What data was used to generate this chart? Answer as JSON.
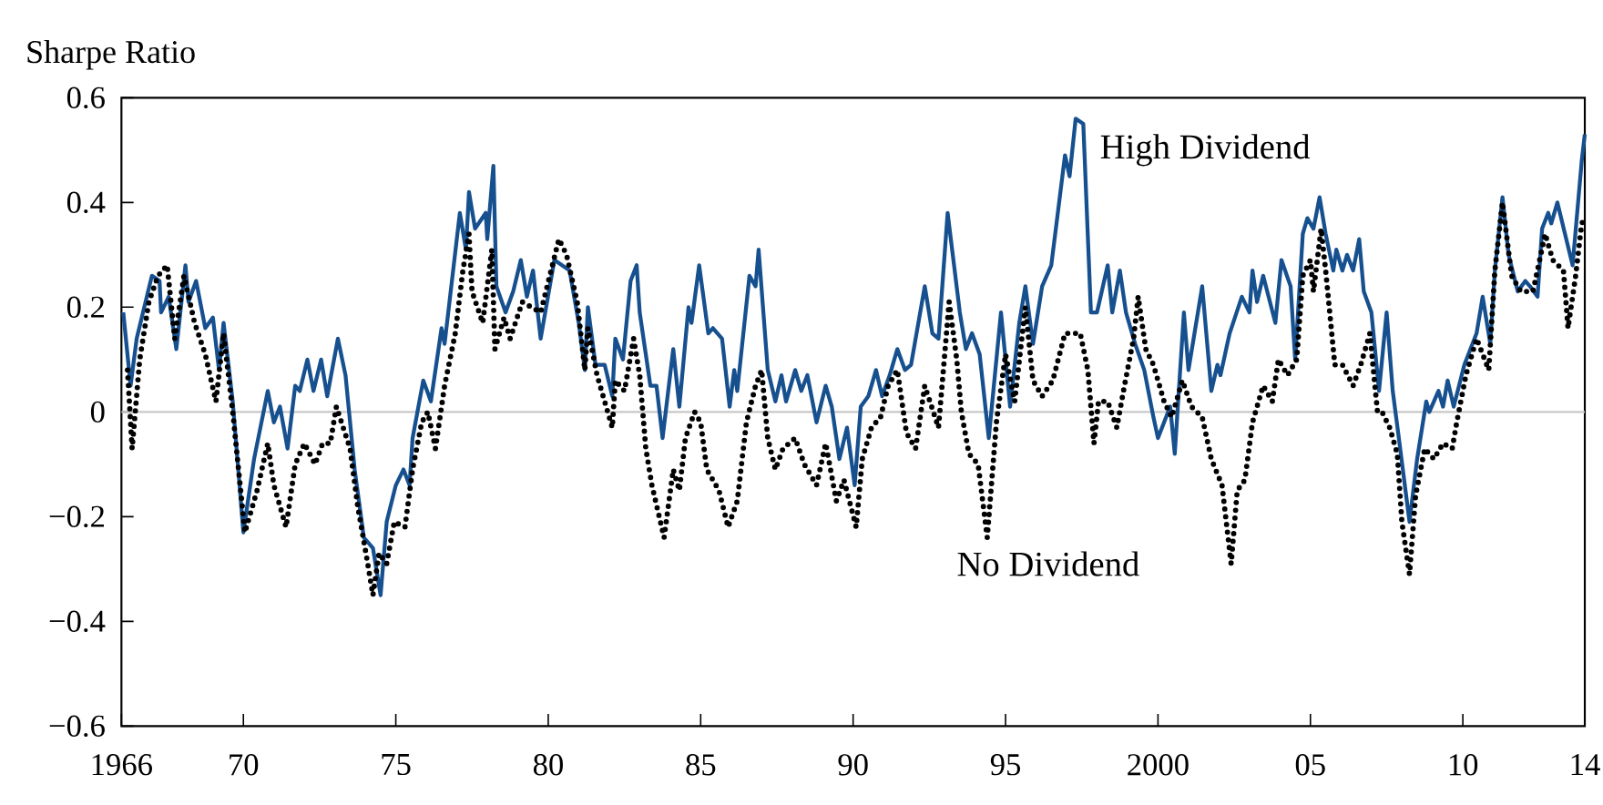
{
  "chart_data": {
    "type": "line",
    "ylabel": "Sharpe Ratio",
    "xlim": [
      1966,
      2014
    ],
    "ylim": [
      -0.6,
      0.6
    ],
    "xticks": [
      {
        "value": 1966,
        "label": "1966"
      },
      {
        "value": 1970,
        "label": "70"
      },
      {
        "value": 1975,
        "label": "75"
      },
      {
        "value": 1980,
        "label": "80"
      },
      {
        "value": 1985,
        "label": "85"
      },
      {
        "value": 1990,
        "label": "90"
      },
      {
        "value": 1995,
        "label": "95"
      },
      {
        "value": 2000,
        "label": "2000"
      },
      {
        "value": 2005,
        "label": "05"
      },
      {
        "value": 2010,
        "label": "10"
      },
      {
        "value": 2014,
        "label": "14"
      }
    ],
    "yticks": [
      {
        "value": -0.6,
        "label": "−0.6"
      },
      {
        "value": -0.4,
        "label": "−0.4"
      },
      {
        "value": -0.2,
        "label": "−0.2"
      },
      0,
      0.2,
      0.4,
      0.6
    ],
    "ref_lines": [
      {
        "axis": "y",
        "value": 0,
        "color": "#c8c8c8"
      }
    ],
    "series": [
      {
        "name": "High Dividend",
        "color": "#17508f",
        "line_style": "solid",
        "x": [
          1966.06,
          1966.3,
          1966.5,
          1967.0,
          1967.25,
          1967.3,
          1967.55,
          1967.8,
          1968.1,
          1968.2,
          1968.45,
          1968.75,
          1969.0,
          1969.2,
          1969.35,
          1969.65,
          1970.0,
          1970.35,
          1970.8,
          1971.0,
          1971.2,
          1971.45,
          1971.7,
          1971.85,
          1972.1,
          1972.3,
          1972.55,
          1972.75,
          1973.1,
          1973.35,
          1973.65,
          1973.95,
          1974.25,
          1974.5,
          1974.7,
          1975.0,
          1975.25,
          1975.45,
          1975.55,
          1975.9,
          1976.15,
          1976.5,
          1976.6,
          1977.1,
          1977.3,
          1977.4,
          1977.6,
          1977.95,
          1978.0,
          1978.2,
          1978.3,
          1978.6,
          1978.85,
          1979.1,
          1979.3,
          1979.5,
          1979.75,
          1980.2,
          1980.7,
          1981.0,
          1981.2,
          1981.3,
          1981.55,
          1981.85,
          1982.1,
          1982.2,
          1982.45,
          1982.7,
          1982.9,
          1983.0,
          1983.35,
          1983.55,
          1983.75,
          1984.1,
          1984.3,
          1984.6,
          1984.7,
          1984.95,
          1985.25,
          1985.4,
          1985.7,
          1985.95,
          1986.1,
          1986.2,
          1986.6,
          1986.8,
          1986.9,
          1987.2,
          1987.45,
          1987.65,
          1987.8,
          1988.1,
          1988.3,
          1988.5,
          1988.8,
          1989.1,
          1989.3,
          1989.55,
          1989.8,
          1990.05,
          1990.25,
          1990.5,
          1990.75,
          1990.95,
          1991.2,
          1991.45,
          1991.7,
          1991.9,
          1992.35,
          1992.6,
          1992.8,
          1993.1,
          1993.5,
          1993.7,
          1993.9,
          1994.15,
          1994.45,
          1994.85,
          1995.15,
          1995.45,
          1995.65,
          1995.9,
          1996.2,
          1996.5,
          1996.8,
          1996.95,
          1997.1,
          1997.3,
          1997.55,
          1997.8,
          1998.0,
          1998.35,
          1998.5,
          1998.75,
          1998.95,
          1999.25,
          1999.55,
          1999.85,
          2000.0,
          2000.4,
          2000.55,
          2000.85,
          2001.0,
          2001.45,
          2001.75,
          2001.95,
          2002.05,
          2002.35,
          2002.75,
          2003.0,
          2003.1,
          2003.25,
          2003.45,
          2003.85,
          2004.05,
          2004.35,
          2004.5,
          2004.75,
          2004.9,
          2005.1,
          2005.3,
          2005.5,
          2005.75,
          2005.85,
          2006.05,
          2006.2,
          2006.4,
          2006.6,
          2006.75,
          2007.0,
          2007.25,
          2007.5,
          2007.7,
          2007.9,
          2008.25,
          2008.5,
          2008.8,
          2008.9,
          2009.2,
          2009.35,
          2009.5,
          2009.7,
          2010.05,
          2010.45,
          2010.65,
          2010.9,
          2011.05,
          2011.3,
          2011.5,
          2011.8,
          2012.05,
          2012.2,
          2012.45,
          2012.6,
          2012.8,
          2012.9,
          2013.1,
          2013.6,
          2013.9,
          2014.0
        ],
        "values": [
          0.19,
          0.05,
          0.14,
          0.26,
          0.25,
          0.19,
          0.22,
          0.12,
          0.28,
          0.21,
          0.25,
          0.16,
          0.18,
          0.08,
          0.17,
          0.02,
          -0.23,
          -0.09,
          0.04,
          -0.02,
          0.01,
          -0.07,
          0.05,
          0.04,
          0.1,
          0.04,
          0.1,
          0.03,
          0.14,
          0.07,
          -0.11,
          -0.24,
          -0.26,
          -0.35,
          -0.21,
          -0.14,
          -0.11,
          -0.14,
          -0.05,
          0.06,
          0.02,
          0.16,
          0.13,
          0.38,
          0.31,
          0.42,
          0.35,
          0.38,
          0.33,
          0.47,
          0.24,
          0.19,
          0.23,
          0.29,
          0.22,
          0.27,
          0.14,
          0.29,
          0.27,
          0.17,
          0.08,
          0.2,
          0.09,
          0.09,
          0.03,
          0.14,
          0.1,
          0.25,
          0.28,
          0.19,
          0.05,
          0.05,
          -0.05,
          0.12,
          0.01,
          0.2,
          0.17,
          0.28,
          0.15,
          0.16,
          0.14,
          0.01,
          0.08,
          0.04,
          0.26,
          0.24,
          0.31,
          0.08,
          0.02,
          0.07,
          0.02,
          0.08,
          0.04,
          0.07,
          -0.02,
          0.05,
          0.01,
          -0.09,
          -0.03,
          -0.14,
          0.01,
          0.03,
          0.08,
          0.03,
          0.07,
          0.12,
          0.08,
          0.09,
          0.24,
          0.15,
          0.14,
          0.38,
          0.19,
          0.12,
          0.15,
          0.11,
          -0.05,
          0.19,
          0.01,
          0.17,
          0.24,
          0.13,
          0.24,
          0.28,
          0.42,
          0.49,
          0.45,
          0.56,
          0.55,
          0.19,
          0.19,
          0.28,
          0.19,
          0.27,
          0.19,
          0.13,
          0.08,
          -0.01,
          -0.05,
          0.01,
          -0.08,
          0.19,
          0.08,
          0.24,
          0.04,
          0.09,
          0.07,
          0.15,
          0.22,
          0.19,
          0.27,
          0.21,
          0.26,
          0.17,
          0.29,
          0.24,
          0.1,
          0.34,
          0.37,
          0.35,
          0.41,
          0.34,
          0.27,
          0.31,
          0.27,
          0.3,
          0.27,
          0.33,
          0.23,
          0.19,
          0.04,
          0.19,
          0.04,
          -0.05,
          -0.21,
          -0.09,
          0.02,
          0.0,
          0.04,
          0.01,
          0.06,
          0.01,
          0.09,
          0.15,
          0.22,
          0.13,
          0.27,
          0.41,
          0.3,
          0.23,
          0.25,
          0.24,
          0.22,
          0.35,
          0.38,
          0.36,
          0.4,
          0.28,
          0.48,
          0.53
        ]
      },
      {
        "name": "No Dividend",
        "color": "#000000",
        "line_style": "dotted",
        "x": [
          1966.2,
          1966.35,
          1966.6,
          1966.9,
          1967.2,
          1967.5,
          1967.75,
          1968.05,
          1968.4,
          1968.75,
          1969.1,
          1969.35,
          1969.65,
          1970.05,
          1970.45,
          1970.8,
          1971.0,
          1971.4,
          1971.7,
          1972.0,
          1972.35,
          1972.6,
          1972.85,
          1973.05,
          1973.5,
          1973.75,
          1974.05,
          1974.25,
          1974.45,
          1974.7,
          1974.95,
          1975.3,
          1975.55,
          1975.85,
          1976.05,
          1976.3,
          1976.6,
          1976.95,
          1977.2,
          1977.4,
          1977.5,
          1977.85,
          1978.15,
          1978.25,
          1978.55,
          1978.75,
          1979.15,
          1979.75,
          1980.35,
          1980.6,
          1980.95,
          1981.2,
          1981.3,
          1981.6,
          1982.1,
          1982.2,
          1982.5,
          1982.8,
          1983.0,
          1983.2,
          1983.4,
          1983.8,
          1984.1,
          1984.3,
          1984.5,
          1984.8,
          1985.0,
          1985.2,
          1985.6,
          1985.9,
          1986.2,
          1986.5,
          1986.8,
          1987.0,
          1987.2,
          1987.45,
          1987.7,
          1988.1,
          1988.4,
          1988.8,
          1989.1,
          1989.45,
          1989.7,
          1990.1,
          1990.3,
          1990.6,
          1990.9,
          1991.15,
          1991.45,
          1991.75,
          1992.05,
          1992.35,
          1992.8,
          1993.15,
          1993.4,
          1993.55,
          1993.8,
          1994.1,
          1994.4,
          1994.7,
          1995.0,
          1995.3,
          1995.65,
          1995.9,
          1996.2,
          1996.55,
          1996.95,
          1997.45,
          1997.7,
          1997.9,
          1998.05,
          1998.35,
          1998.65,
          1998.9,
          1999.2,
          1999.35,
          1999.6,
          1999.85,
          2000.2,
          2000.45,
          2000.8,
          2001.1,
          2001.45,
          2001.75,
          2002.1,
          2002.4,
          2002.6,
          2002.85,
          2003.1,
          2003.45,
          2003.75,
          2003.95,
          2004.25,
          2004.55,
          2004.75,
          2005.0,
          2005.1,
          2005.35,
          2005.5,
          2005.7,
          2005.8,
          2006.05,
          2006.4,
          2006.65,
          2006.95,
          2007.2,
          2007.35,
          2007.6,
          2007.85,
          2008.0,
          2008.25,
          2008.45,
          2008.75,
          2009.05,
          2009.35,
          2009.65,
          2009.8,
          2010.1,
          2010.45,
          2010.85,
          2011.05,
          2011.3,
          2011.6,
          2011.9,
          2012.3,
          2012.7,
          2012.95,
          2013.3,
          2013.45,
          2013.7,
          2013.9,
          2014.0
        ],
        "values": [
          0.08,
          -0.07,
          0.1,
          0.21,
          0.26,
          0.28,
          0.14,
          0.26,
          0.17,
          0.11,
          0.02,
          0.15,
          0.0,
          -0.23,
          -0.15,
          -0.06,
          -0.14,
          -0.22,
          -0.1,
          -0.06,
          -0.1,
          -0.06,
          -0.06,
          0.01,
          -0.07,
          -0.18,
          -0.28,
          -0.35,
          -0.27,
          -0.29,
          -0.21,
          -0.22,
          -0.11,
          -0.02,
          0.0,
          -0.07,
          0.05,
          0.15,
          0.27,
          0.34,
          0.23,
          0.17,
          0.31,
          0.12,
          0.18,
          0.14,
          0.21,
          0.19,
          0.33,
          0.3,
          0.21,
          0.08,
          0.16,
          0.07,
          -0.03,
          0.06,
          0.04,
          0.14,
          0.07,
          -0.07,
          -0.14,
          -0.24,
          -0.11,
          -0.15,
          -0.05,
          0.0,
          -0.02,
          -0.11,
          -0.15,
          -0.22,
          -0.17,
          -0.02,
          0.05,
          0.08,
          -0.05,
          -0.11,
          -0.07,
          -0.05,
          -0.1,
          -0.14,
          -0.06,
          -0.17,
          -0.13,
          -0.22,
          -0.09,
          -0.03,
          -0.01,
          0.05,
          0.08,
          -0.04,
          -0.07,
          0.05,
          -0.03,
          0.21,
          0.1,
          0.0,
          -0.08,
          -0.1,
          -0.24,
          -0.02,
          0.11,
          0.02,
          0.2,
          0.06,
          0.03,
          0.06,
          0.15,
          0.15,
          0.08,
          -0.06,
          0.02,
          0.02,
          -0.03,
          0.05,
          0.14,
          0.22,
          0.12,
          0.09,
          0.02,
          -0.01,
          0.06,
          0.01,
          -0.01,
          -0.09,
          -0.14,
          -0.29,
          -0.15,
          -0.13,
          -0.02,
          0.05,
          0.02,
          0.1,
          0.07,
          0.1,
          0.26,
          0.29,
          0.23,
          0.35,
          0.27,
          0.15,
          0.09,
          0.09,
          0.05,
          0.09,
          0.15,
          0.0,
          0.0,
          -0.03,
          -0.08,
          -0.21,
          -0.31,
          -0.16,
          -0.07,
          -0.09,
          -0.06,
          -0.07,
          -0.02,
          0.07,
          0.14,
          0.08,
          0.27,
          0.4,
          0.26,
          0.23,
          0.23,
          0.34,
          0.29,
          0.27,
          0.16,
          0.26,
          0.36,
          0.37
        ]
      }
    ]
  }
}
